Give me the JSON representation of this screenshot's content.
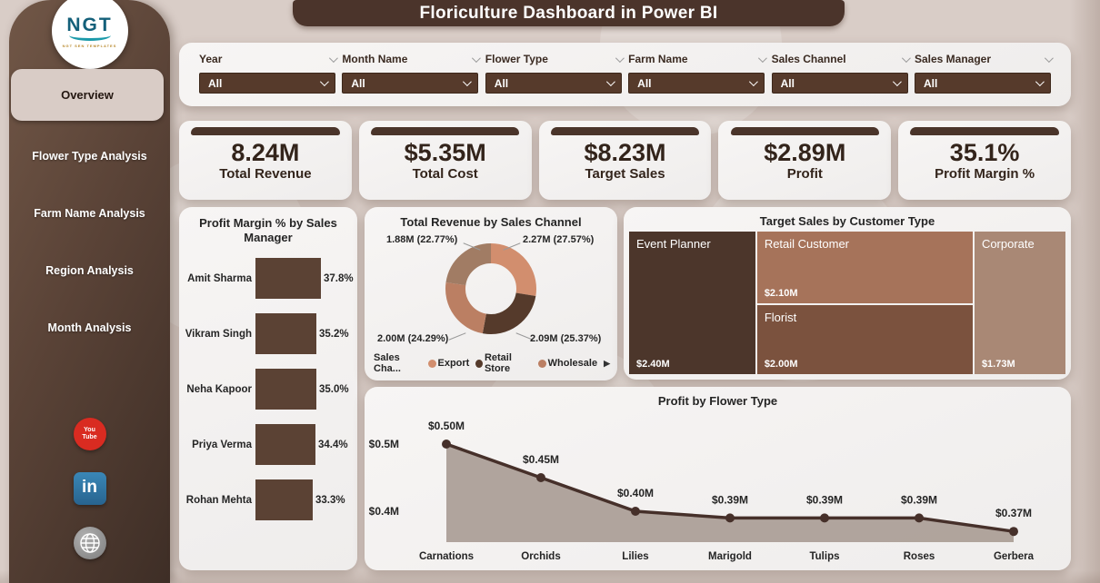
{
  "app": {
    "title": "Floriculture Dashboard in Power BI"
  },
  "logo": {
    "text": "NGT",
    "subtext": "NGT SEN TEMPLATES"
  },
  "sidebar": {
    "items": [
      {
        "label": "Overview",
        "active": true
      },
      {
        "label": "Flower Type Analysis",
        "active": false
      },
      {
        "label": "Farm Name Analysis",
        "active": false
      },
      {
        "label": "Region Analysis",
        "active": false
      },
      {
        "label": "Month Analysis",
        "active": false
      }
    ],
    "social": {
      "youtube": "YouTube",
      "linkedin": "in",
      "website": "Website"
    }
  },
  "filters": [
    {
      "label": "Year",
      "value": "All"
    },
    {
      "label": "Month Name",
      "value": "All"
    },
    {
      "label": "Flower Type",
      "value": "All"
    },
    {
      "label": "Farm Name",
      "value": "All"
    },
    {
      "label": "Sales Channel",
      "value": "All"
    },
    {
      "label": "Sales Manager",
      "value": "All"
    }
  ],
  "kpis": [
    {
      "value": "8.24M",
      "label": "Total Revenue"
    },
    {
      "value": "$5.35M",
      "label": "Total Cost"
    },
    {
      "value": "$8.23M",
      "label": "Target Sales"
    },
    {
      "value": "$2.89M",
      "label": "Profit"
    },
    {
      "value": "35.1%",
      "label": "Profit Margin %"
    }
  ],
  "colors": {
    "accent_dark_brown": "#4A342A",
    "bar_brown": "#5B4234",
    "card_bg": "#F4F2F1",
    "page_bg": "#D9CDC7"
  },
  "chart_data": [
    {
      "type": "bar",
      "title": "Profit Margin % by Sales Manager",
      "orientation": "horizontal",
      "categories": [
        "Amit Sharma",
        "Vikram Singh",
        "Neha Kapoor",
        "Priya Verma",
        "Rohan Mehta"
      ],
      "values": [
        37.8,
        35.2,
        35.0,
        34.4,
        33.3
      ],
      "value_labels": [
        "37.8%",
        "35.2%",
        "35.0%",
        "34.4%",
        "33.3%"
      ],
      "xlim": [
        0,
        37.8
      ],
      "bar_color": "#5B4234"
    },
    {
      "type": "pie",
      "title": "Total Revenue by Sales Channel",
      "legend_title": "Sales Cha...",
      "legend_position": "bottom",
      "legend_has_more_arrow": true,
      "slices": [
        {
          "name": "Export",
          "value": 2.27,
          "pct": 27.57,
          "callout": "2.27M (27.57%)",
          "color": "#D28E6E",
          "callout_pos": "top-right",
          "in_legend": true
        },
        {
          "name": "Retail Store",
          "value": 2.09,
          "pct": 25.37,
          "callout": "2.09M (25.37%)",
          "color": "#553A2B",
          "callout_pos": "bottom-right",
          "in_legend": true
        },
        {
          "name": "Wholesale",
          "value": 2.0,
          "pct": 24.29,
          "callout": "2.00M (24.29%)",
          "color": "#BB7F63",
          "callout_pos": "bottom-left",
          "in_legend": true
        },
        {
          "name": "",
          "value": 1.88,
          "pct": 22.77,
          "callout": "1.88M (22.77%)",
          "color": "#A17C64",
          "callout_pos": "top-left",
          "in_legend": false
        }
      ]
    },
    {
      "type": "treemap",
      "title": "Target Sales by Customer Type",
      "blocks": [
        {
          "name": "Event Planner",
          "value": 2.4,
          "label": "$2.40M",
          "color": "#4C362B"
        },
        {
          "name": "Retail Customer",
          "value": 2.1,
          "label": "$2.10M",
          "color": "#A6735A"
        },
        {
          "name": "Florist",
          "value": 2.0,
          "label": "$2.00M",
          "color": "#7B523E"
        },
        {
          "name": "Corporate",
          "value": 1.73,
          "label": "$1.73M",
          "color": "#A98875"
        }
      ],
      "layout_columns": [
        [
          0
        ],
        [
          1,
          2
        ],
        [
          3
        ]
      ]
    },
    {
      "type": "area",
      "title": "Profit by Flower Type",
      "categories": [
        "Carnations",
        "Orchids",
        "Lilies",
        "Marigold",
        "Tulips",
        "Roses",
        "Gerbera"
      ],
      "values": [
        0.5,
        0.45,
        0.4,
        0.39,
        0.39,
        0.39,
        0.37
      ],
      "point_labels": [
        "$0.50M",
        "$0.45M",
        "$0.40M",
        "$0.39M",
        "$0.39M",
        "$0.39M",
        "$0.37M"
      ],
      "yticks": [
        {
          "label": "$0.5M",
          "value": 0.5
        },
        {
          "label": "$0.4M",
          "value": 0.4
        }
      ],
      "line_color": "#46302-6",
      "line_color_hex": "#46302A",
      "area_color": "#AC9F98",
      "grid": false
    }
  ]
}
